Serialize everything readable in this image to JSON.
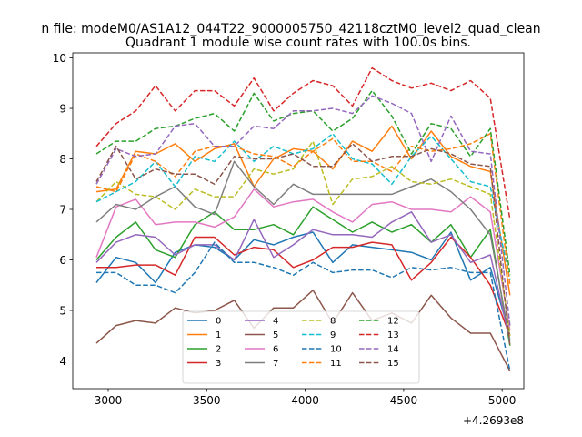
{
  "figure_title": "n file: modeM0/AS1A12_044T22_9000005750_42118cztM0_level2_quad_clean",
  "chart_data": {
    "type": "line",
    "title": "Quadrant 1 module wise count rates with 100.0s bins.",
    "xlabel": "",
    "ylabel": "",
    "x_offset_label": "+4.2693e8",
    "xlim": [
      2820,
      5110
    ],
    "ylim": [
      3.45,
      10.1
    ],
    "xticks": [
      3000,
      3500,
      4000,
      4500,
      5000
    ],
    "yticks": [
      4,
      5,
      6,
      7,
      8,
      9,
      10
    ],
    "grid": false,
    "legend_placement": "lower center",
    "x": [
      2940,
      3040,
      3140,
      3240,
      3340,
      3440,
      3540,
      3640,
      3740,
      3840,
      3940,
      4040,
      4140,
      4240,
      4340,
      4440,
      4540,
      4640,
      4740,
      4840,
      4940,
      5040
    ],
    "series": [
      {
        "name": "0",
        "color": "#1f77b4",
        "dash": "solid",
        "values": [
          5.55,
          6.05,
          5.95,
          5.55,
          6.15,
          6.3,
          6.25,
          6.0,
          6.4,
          6.3,
          6.45,
          6.55,
          5.95,
          6.3,
          6.25,
          6.2,
          6.15,
          6.0,
          6.55,
          5.6,
          5.85,
          4.5
        ]
      },
      {
        "name": "1",
        "color": "#ff7f0e",
        "dash": "solid",
        "values": [
          7.35,
          7.4,
          8.15,
          8.1,
          8.3,
          7.95,
          8.2,
          8.3,
          7.45,
          8.0,
          8.2,
          8.15,
          7.8,
          8.35,
          8.15,
          8.65,
          8.0,
          8.55,
          8.05,
          7.85,
          7.75,
          5.3
        ]
      },
      {
        "name": "2",
        "color": "#2ca02c",
        "dash": "solid",
        "values": [
          6.0,
          6.45,
          6.75,
          6.2,
          6.05,
          6.7,
          6.95,
          6.6,
          6.6,
          6.7,
          6.5,
          7.05,
          6.8,
          6.55,
          6.75,
          6.55,
          6.7,
          6.35,
          6.7,
          6.05,
          6.6,
          4.3
        ]
      },
      {
        "name": "3",
        "color": "#d62728",
        "dash": "solid",
        "values": [
          5.85,
          5.85,
          5.9,
          5.9,
          5.7,
          6.45,
          6.45,
          6.1,
          6.25,
          6.2,
          5.85,
          6.0,
          6.25,
          6.25,
          6.35,
          6.3,
          5.6,
          5.95,
          6.45,
          6.05,
          5.5,
          4.5
        ]
      },
      {
        "name": "4",
        "color": "#9467bd",
        "dash": "solid",
        "values": [
          5.95,
          6.35,
          6.5,
          6.45,
          6.1,
          6.3,
          6.3,
          6.0,
          6.8,
          6.05,
          6.3,
          6.6,
          6.5,
          6.5,
          6.45,
          6.75,
          6.95,
          6.35,
          6.5,
          5.95,
          6.1,
          4.4
        ]
      },
      {
        "name": "5",
        "color": "#8c564b",
        "dash": "solid",
        "values": [
          4.35,
          4.7,
          4.8,
          4.75,
          5.05,
          4.95,
          5.0,
          5.2,
          4.65,
          5.05,
          5.05,
          5.4,
          4.75,
          5.35,
          4.8,
          4.95,
          4.75,
          5.3,
          4.85,
          4.55,
          4.55,
          3.8
        ]
      },
      {
        "name": "6",
        "color": "#e377c2",
        "dash": "solid",
        "values": [
          6.05,
          7.05,
          7.2,
          6.7,
          6.75,
          6.75,
          6.65,
          6.85,
          7.4,
          7.05,
          7.15,
          7.2,
          6.95,
          6.75,
          7.1,
          7.15,
          7.0,
          7.0,
          6.95,
          7.25,
          6.95,
          4.6
        ]
      },
      {
        "name": "7",
        "color": "#7f7f7f",
        "dash": "solid",
        "values": [
          6.75,
          7.1,
          7.0,
          7.25,
          7.45,
          7.05,
          6.9,
          7.95,
          7.45,
          7.1,
          7.5,
          7.3,
          7.3,
          7.3,
          7.3,
          7.3,
          7.45,
          7.6,
          7.35,
          7.0,
          6.5,
          4.4
        ]
      },
      {
        "name": "8",
        "color": "#bcbd22",
        "dash": "dashed",
        "values": [
          7.15,
          7.55,
          7.3,
          7.25,
          7.0,
          7.4,
          7.25,
          7.25,
          7.8,
          7.7,
          7.8,
          8.35,
          7.1,
          7.6,
          7.65,
          7.85,
          7.55,
          7.5,
          7.6,
          7.45,
          7.3,
          4.5
        ]
      },
      {
        "name": "9",
        "color": "#17becf",
        "dash": "dashed",
        "values": [
          7.15,
          7.35,
          7.55,
          7.95,
          7.45,
          8.05,
          7.95,
          8.35,
          7.95,
          8.25,
          8.1,
          8.2,
          8.5,
          8.0,
          7.9,
          7.5,
          8.05,
          8.45,
          8.0,
          7.55,
          7.45,
          5.6
        ]
      },
      {
        "name": "10",
        "color": "#1f77b4",
        "dash": "dashed",
        "values": [
          5.75,
          5.75,
          5.5,
          5.5,
          5.35,
          5.75,
          6.35,
          5.95,
          5.95,
          5.85,
          5.7,
          5.95,
          5.75,
          5.8,
          5.8,
          5.65,
          5.85,
          5.8,
          5.85,
          5.75,
          5.75,
          3.8
        ]
      },
      {
        "name": "11",
        "color": "#ff7f0e",
        "dash": "dashed",
        "values": [
          7.45,
          7.35,
          8.1,
          7.95,
          7.65,
          8.15,
          8.25,
          8.25,
          8.1,
          8.05,
          7.85,
          8.15,
          8.4,
          7.95,
          7.95,
          7.75,
          8.25,
          8.15,
          8.2,
          8.3,
          8.5,
          5.5
        ]
      },
      {
        "name": "12",
        "color": "#2ca02c",
        "dash": "dashed",
        "values": [
          8.1,
          8.35,
          8.35,
          8.6,
          8.65,
          8.8,
          8.9,
          8.55,
          9.3,
          8.75,
          8.9,
          8.95,
          8.55,
          8.8,
          9.35,
          8.85,
          8.1,
          8.7,
          8.6,
          8.05,
          8.6,
          5.7
        ]
      },
      {
        "name": "13",
        "color": "#d62728",
        "dash": "dashed",
        "values": [
          8.25,
          8.7,
          8.95,
          9.45,
          8.95,
          9.35,
          9.35,
          9.05,
          9.6,
          8.95,
          9.3,
          9.55,
          9.45,
          9.05,
          9.8,
          9.55,
          9.4,
          9.5,
          9.35,
          9.55,
          9.2,
          6.8
        ]
      },
      {
        "name": "14",
        "color": "#9467bd",
        "dash": "dashed",
        "values": [
          7.5,
          8.2,
          8.05,
          8.1,
          8.65,
          8.7,
          8.25,
          8.25,
          8.65,
          8.6,
          8.95,
          8.95,
          9.0,
          8.9,
          9.25,
          9.1,
          8.9,
          7.95,
          8.85,
          8.15,
          8.1,
          4.7
        ]
      },
      {
        "name": "15",
        "color": "#8c564b",
        "dash": "dashed",
        "values": [
          7.55,
          8.25,
          7.6,
          7.8,
          7.7,
          7.7,
          7.5,
          8.05,
          8.0,
          8.0,
          8.1,
          7.85,
          7.85,
          8.3,
          7.95,
          8.05,
          8.05,
          8.2,
          8.1,
          7.9,
          7.85,
          4.3
        ]
      }
    ]
  }
}
